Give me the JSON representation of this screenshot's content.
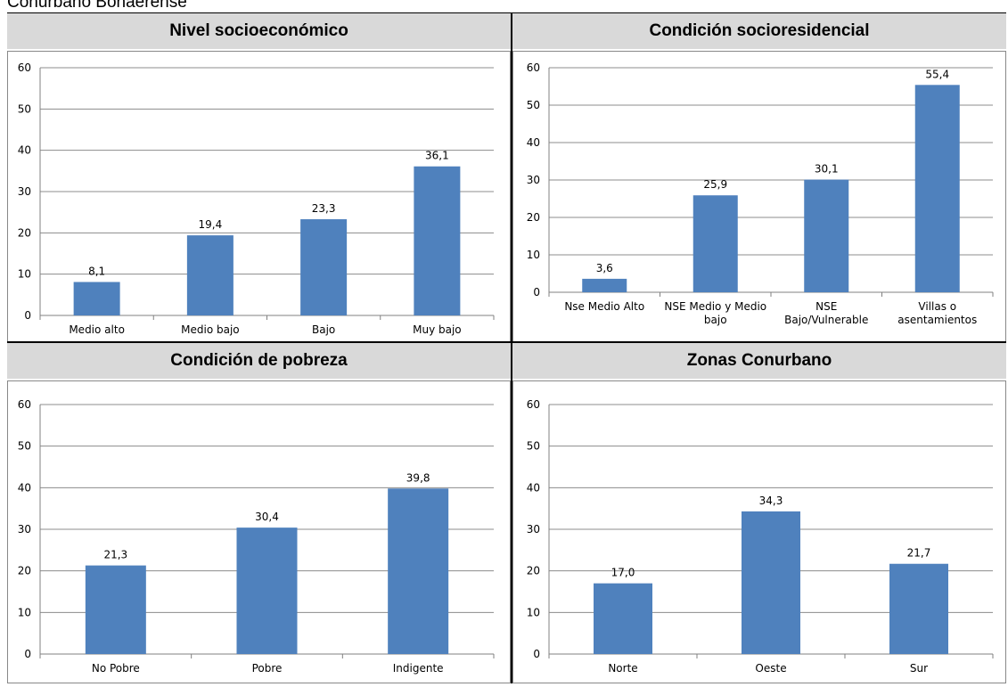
{
  "page": {
    "title": "Conurbano Bonaerense"
  },
  "chart_data": [
    {
      "type": "bar",
      "title": "Nivel socioeconómico",
      "categories": [
        "Medio alto",
        "Medio bajo",
        "Bajo",
        "Muy bajo"
      ],
      "values": [
        8.1,
        19.4,
        23.3,
        36.1
      ],
      "labels": [
        "8,1",
        "19,4",
        "23,3",
        "36,1"
      ],
      "ylim": [
        0,
        60
      ],
      "yticks": [
        "0",
        "10",
        "20",
        "30",
        "40",
        "50",
        "60"
      ],
      "grid": true,
      "color": "#4f81bd"
    },
    {
      "type": "bar",
      "title": "Condición socioresidencial",
      "categories": [
        [
          "Nse Medio Alto"
        ],
        [
          "NSE Medio y Medio",
          "bajo"
        ],
        [
          "NSE",
          "Bajo/Vulnerable"
        ],
        [
          "Villas o",
          "asentamientos"
        ]
      ],
      "values": [
        3.6,
        25.9,
        30.1,
        55.4
      ],
      "labels": [
        "3,6",
        "25,9",
        "30,1",
        "55,4"
      ],
      "ylim": [
        0,
        60
      ],
      "yticks": [
        "0",
        "10",
        "20",
        "30",
        "40",
        "50",
        "60"
      ],
      "grid": true,
      "color": "#4f81bd"
    },
    {
      "type": "bar",
      "title": "Condición de pobreza",
      "categories": [
        "No Pobre",
        "Pobre",
        "Indigente"
      ],
      "values": [
        21.3,
        30.4,
        39.8
      ],
      "labels": [
        "21,3",
        "30,4",
        "39,8"
      ],
      "ylim": [
        0,
        60
      ],
      "yticks": [
        "0",
        "10",
        "20",
        "30",
        "40",
        "50",
        "60"
      ],
      "grid": true,
      "color": "#4f81bd"
    },
    {
      "type": "bar",
      "title": "Zonas Conurbano",
      "categories": [
        "Norte",
        "Oeste",
        "Sur"
      ],
      "values": [
        17.0,
        34.3,
        21.7
      ],
      "labels": [
        "17,0",
        "34,3",
        "21,7"
      ],
      "ylim": [
        0,
        60
      ],
      "yticks": [
        "0",
        "10",
        "20",
        "30",
        "40",
        "50",
        "60"
      ],
      "grid": true,
      "color": "#4f81bd"
    }
  ]
}
